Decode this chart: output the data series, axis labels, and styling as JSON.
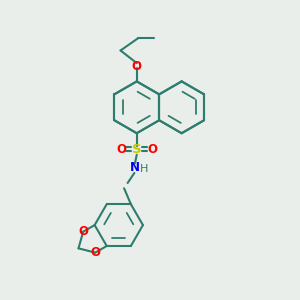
{
  "background_color": "#eaeeea",
  "bond_color": "#2d7d6e",
  "bond_width": 1.5,
  "sulfur_color": "#c8c800",
  "oxygen_color": "#ff0000",
  "nitrogen_color": "#0000ee",
  "text_color": "#2d7d6e",
  "figsize": [
    3.0,
    3.0
  ],
  "dpi": 100,
  "xlim": [
    0,
    10
  ],
  "ylim": [
    0,
    10
  ]
}
